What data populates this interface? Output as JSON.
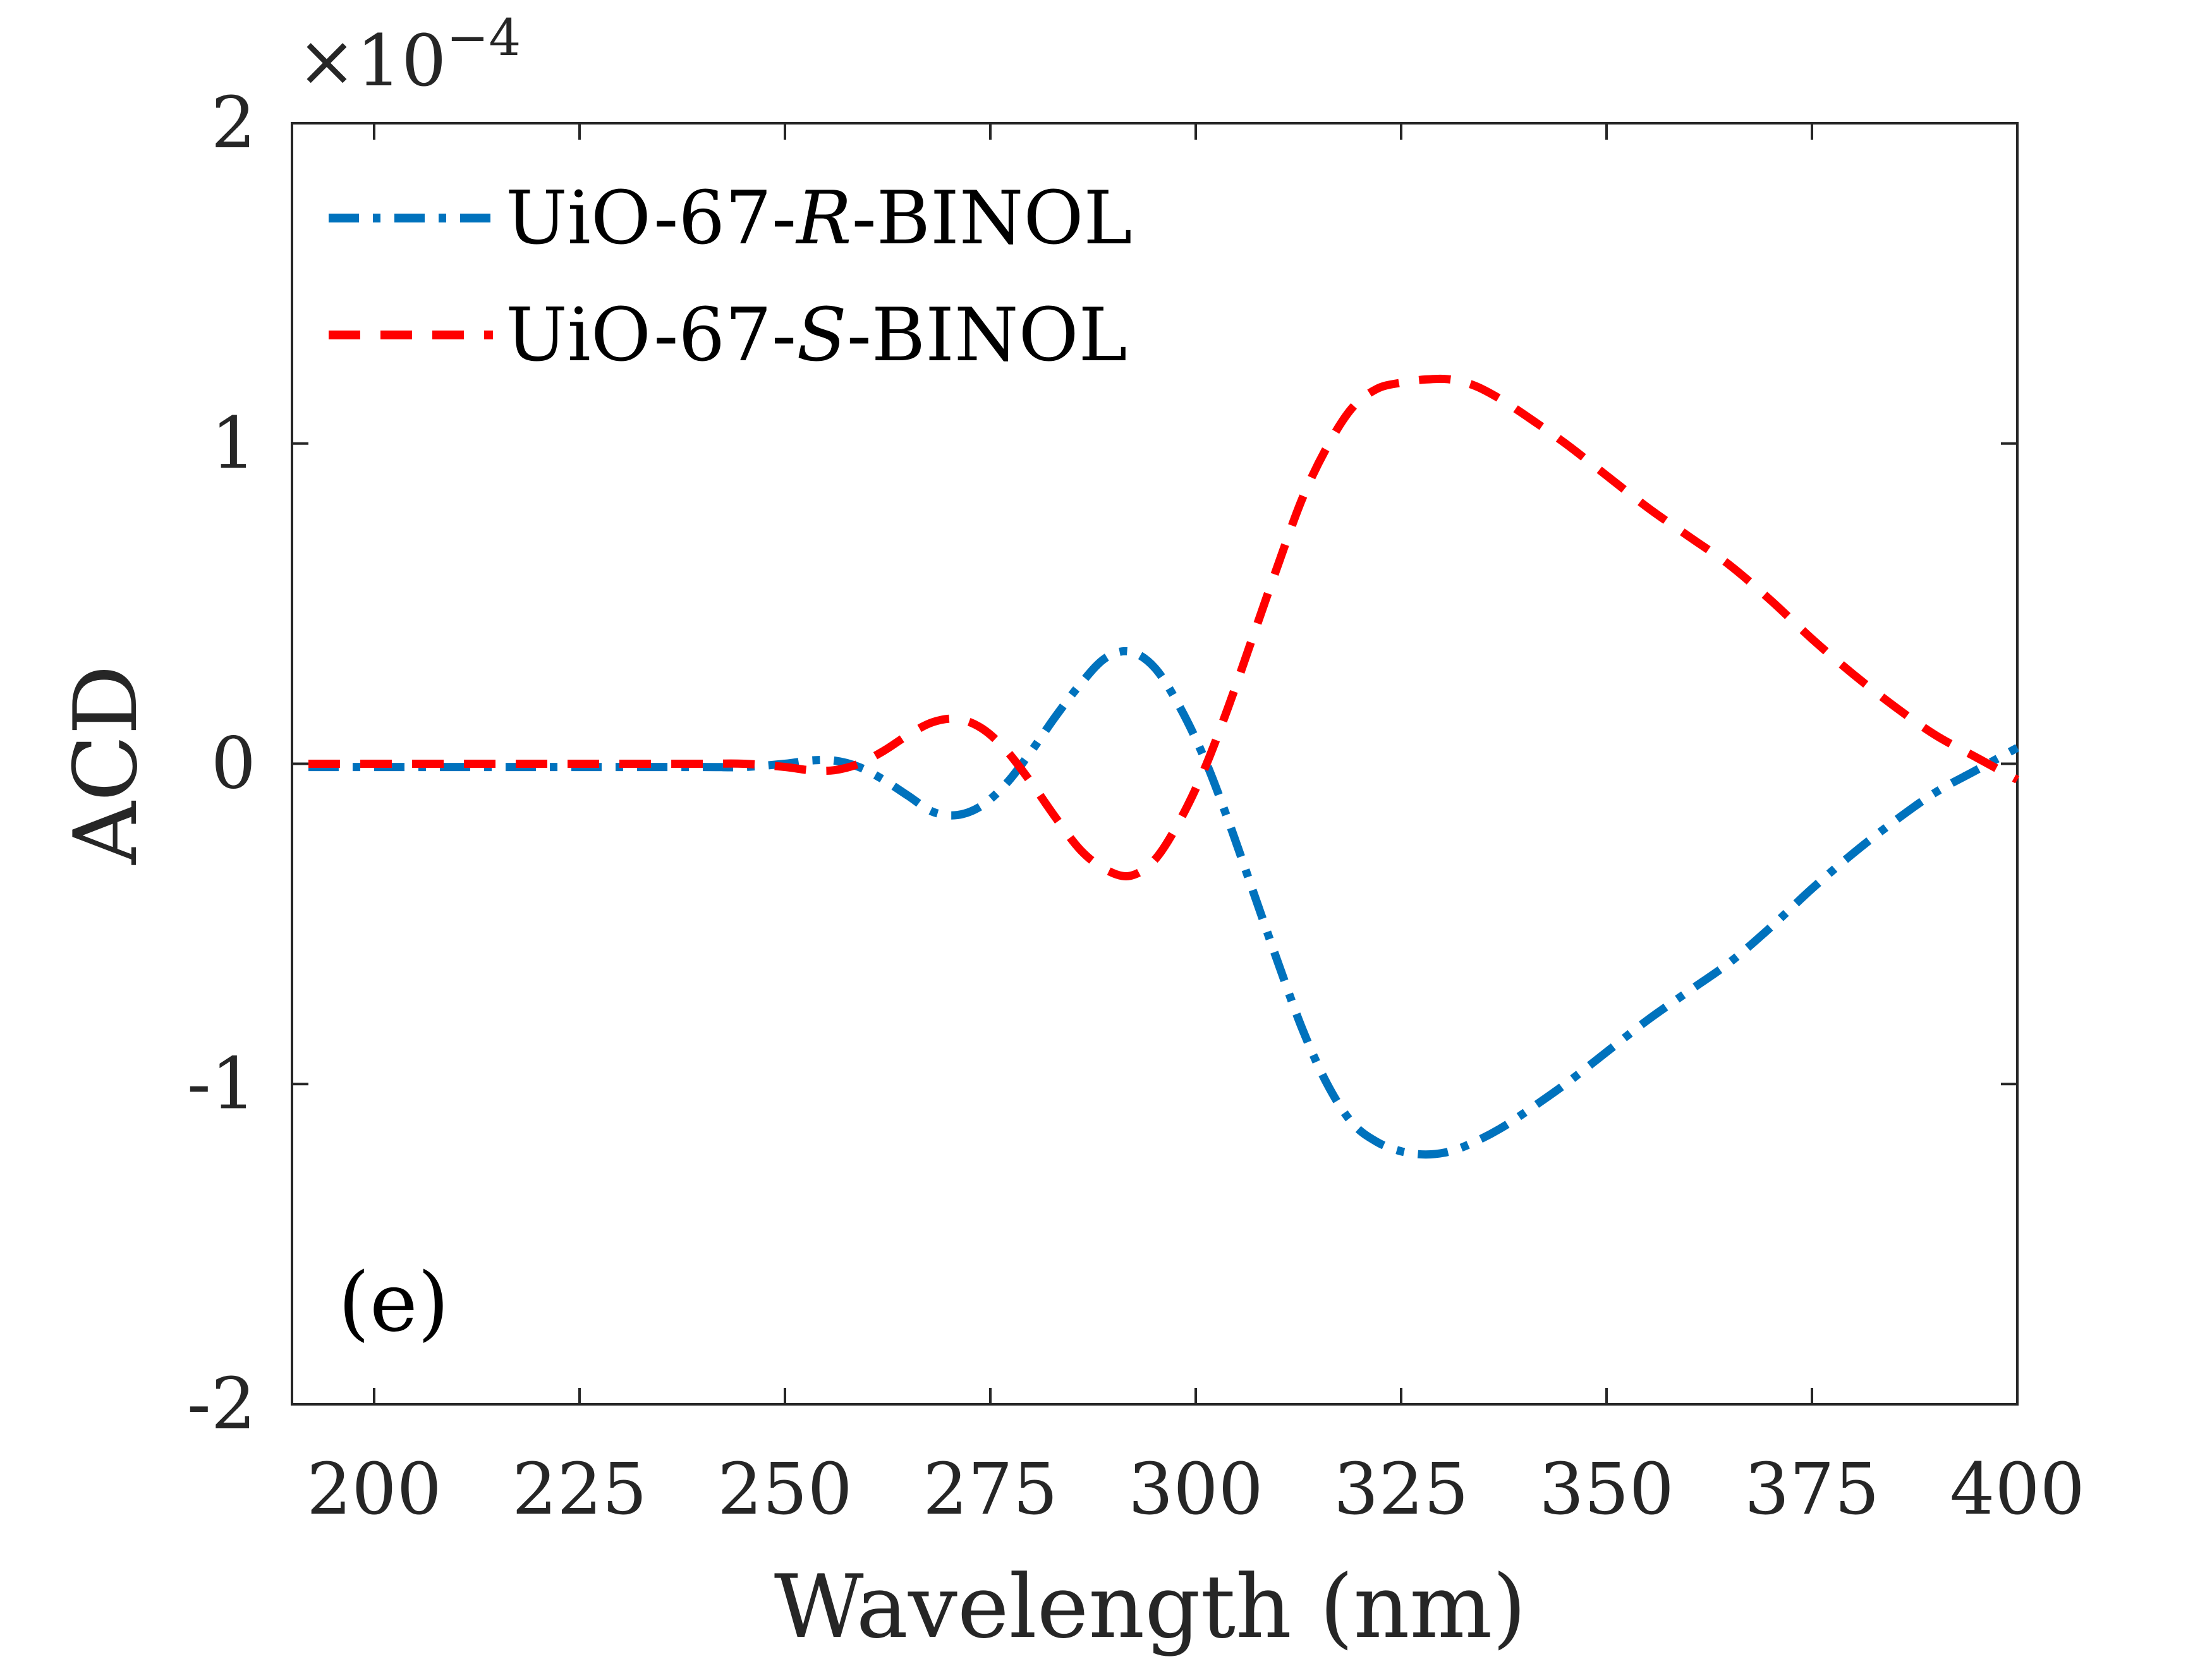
{
  "chart_data": {
    "type": "line",
    "title": "",
    "xlabel": "Wavelength (nm)",
    "ylabel": "ACD",
    "xlim": [
      190,
      400
    ],
    "ylim": [
      -2,
      2
    ],
    "xticks": [
      200,
      225,
      250,
      275,
      300,
      325,
      350,
      375,
      400
    ],
    "xtick_labels": [
      "200",
      "225",
      "250",
      "275",
      "300",
      "325",
      "350",
      "375",
      "400"
    ],
    "yticks": [
      -2,
      -1,
      0,
      1,
      2
    ],
    "ytick_labels": [
      "-2",
      "-1",
      "0",
      "1",
      "2"
    ],
    "y_scale_label": {
      "base": "×10",
      "exponent": "−4"
    },
    "panel_label": "(e)",
    "grid": false,
    "legend_position": "top-left",
    "series": [
      {
        "name": "UiO-67-R-BINOL",
        "legend_parts": {
          "prefix": "UiO-67-",
          "italic": "R",
          "suffix": "-BINOL"
        },
        "color": "#0072BD",
        "line_style": "dash-dot",
        "x": [
          192,
          200,
          210,
          220,
          230,
          240,
          245,
          250,
          253,
          256,
          259,
          262,
          265,
          268,
          271,
          274,
          277,
          280,
          283,
          286,
          289,
          292,
          295,
          298,
          301,
          304,
          307,
          310,
          313,
          316,
          319,
          322,
          325,
          328,
          331,
          334,
          337,
          340,
          345,
          350,
          355,
          360,
          365,
          370,
          375,
          380,
          385,
          390,
          395,
          400
        ],
        "y": [
          -0.01,
          -0.01,
          -0.01,
          -0.01,
          -0.01,
          -0.01,
          -0.01,
          0.0,
          0.01,
          0.01,
          -0.01,
          -0.05,
          -0.1,
          -0.15,
          -0.16,
          -0.13,
          -0.06,
          0.04,
          0.15,
          0.25,
          0.33,
          0.35,
          0.3,
          0.18,
          0.02,
          -0.18,
          -0.4,
          -0.62,
          -0.83,
          -1.0,
          -1.12,
          -1.18,
          -1.21,
          -1.22,
          -1.21,
          -1.18,
          -1.14,
          -1.09,
          -1.0,
          -0.9,
          -0.8,
          -0.71,
          -0.62,
          -0.51,
          -0.39,
          -0.28,
          -0.18,
          -0.09,
          -0.02,
          0.05
        ]
      },
      {
        "name": "UiO-67-S-BINOL",
        "legend_parts": {
          "prefix": "UiO-67-",
          "italic": "S",
          "suffix": "-BINOL"
        },
        "color": "#FF0000",
        "line_style": "dashed",
        "x": [
          192,
          200,
          210,
          220,
          230,
          240,
          245,
          250,
          253,
          256,
          259,
          262,
          265,
          268,
          271,
          274,
          277,
          280,
          283,
          286,
          289,
          292,
          295,
          298,
          301,
          304,
          307,
          310,
          313,
          316,
          319,
          322,
          325,
          328,
          331,
          334,
          337,
          340,
          345,
          350,
          355,
          360,
          365,
          370,
          375,
          380,
          385,
          390,
          395,
          400
        ],
        "y": [
          0.0,
          0.0,
          0.0,
          0.0,
          0.0,
          0.0,
          0.0,
          -0.01,
          -0.02,
          -0.02,
          0.0,
          0.04,
          0.09,
          0.13,
          0.14,
          0.11,
          0.04,
          -0.06,
          -0.17,
          -0.27,
          -0.33,
          -0.35,
          -0.3,
          -0.18,
          -0.02,
          0.18,
          0.4,
          0.62,
          0.83,
          0.99,
          1.11,
          1.17,
          1.19,
          1.2,
          1.2,
          1.18,
          1.14,
          1.09,
          1.0,
          0.9,
          0.8,
          0.71,
          0.62,
          0.51,
          0.39,
          0.28,
          0.18,
          0.09,
          0.02,
          -0.05
        ]
      }
    ]
  }
}
